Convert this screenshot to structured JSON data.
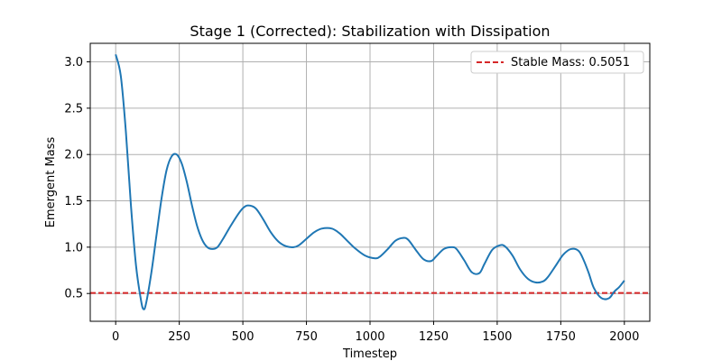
{
  "chart_data": {
    "type": "line",
    "title": "Stage 1 (Corrected): Stabilization with Dissipation",
    "xlabel": "Timestep",
    "ylabel": "Emergent Mass",
    "xlim": [
      -100,
      2100
    ],
    "ylim": [
      0.2,
      3.2
    ],
    "xticks": [
      0,
      250,
      500,
      750,
      1000,
      1250,
      1500,
      1750,
      2000
    ],
    "yticks": [
      0.5,
      1.0,
      1.5,
      2.0,
      2.5,
      3.0
    ],
    "xtick_labels": [
      "0",
      "250",
      "500",
      "750",
      "1000",
      "1250",
      "1500",
      "1750",
      "2000"
    ],
    "ytick_labels": [
      "0.5",
      "1.0",
      "1.5",
      "2.0",
      "2.5",
      "3.0"
    ],
    "grid": true,
    "legend_position": "top-right",
    "series": [
      {
        "color": "#1f77b4",
        "x": [
          0,
          20,
          40,
          60,
          80,
          100,
          110,
          120,
          140,
          160,
          180,
          200,
          220,
          240,
          260,
          280,
          300,
          320,
          340,
          360,
          380,
          400,
          420,
          450,
          480,
          500,
          520,
          550,
          580,
          610,
          640,
          670,
          700,
          720,
          750,
          780,
          810,
          850,
          880,
          910,
          940,
          980,
          1020,
          1040,
          1070,
          1100,
          1130,
          1150,
          1180,
          1210,
          1240,
          1260,
          1290,
          1320,
          1340,
          1370,
          1400,
          1430,
          1450,
          1480,
          1510,
          1530,
          1560,
          1590,
          1620,
          1650,
          1680,
          1700,
          1730,
          1760,
          1790,
          1820,
          1840,
          1860,
          1880,
          1910,
          1940,
          1960,
          1980,
          2000
        ],
        "y": [
          3.08,
          2.85,
          2.25,
          1.45,
          0.8,
          0.42,
          0.33,
          0.4,
          0.72,
          1.12,
          1.52,
          1.83,
          1.98,
          2.0,
          1.9,
          1.7,
          1.45,
          1.23,
          1.08,
          1.0,
          0.98,
          1.0,
          1.08,
          1.22,
          1.35,
          1.42,
          1.45,
          1.42,
          1.3,
          1.16,
          1.06,
          1.01,
          1.0,
          1.02,
          1.09,
          1.16,
          1.2,
          1.2,
          1.15,
          1.07,
          0.99,
          0.91,
          0.88,
          0.9,
          0.98,
          1.07,
          1.1,
          1.08,
          0.97,
          0.87,
          0.85,
          0.9,
          0.98,
          1.0,
          0.98,
          0.86,
          0.73,
          0.72,
          0.82,
          0.97,
          1.02,
          1.01,
          0.91,
          0.76,
          0.66,
          0.62,
          0.63,
          0.68,
          0.8,
          0.92,
          0.98,
          0.96,
          0.86,
          0.72,
          0.56,
          0.45,
          0.45,
          0.52,
          0.57,
          0.64
        ]
      }
    ],
    "reference_line": {
      "y": 0.5051,
      "color": "#d62728",
      "style": "dashed",
      "label": "Stable Mass: 0.5051"
    }
  }
}
